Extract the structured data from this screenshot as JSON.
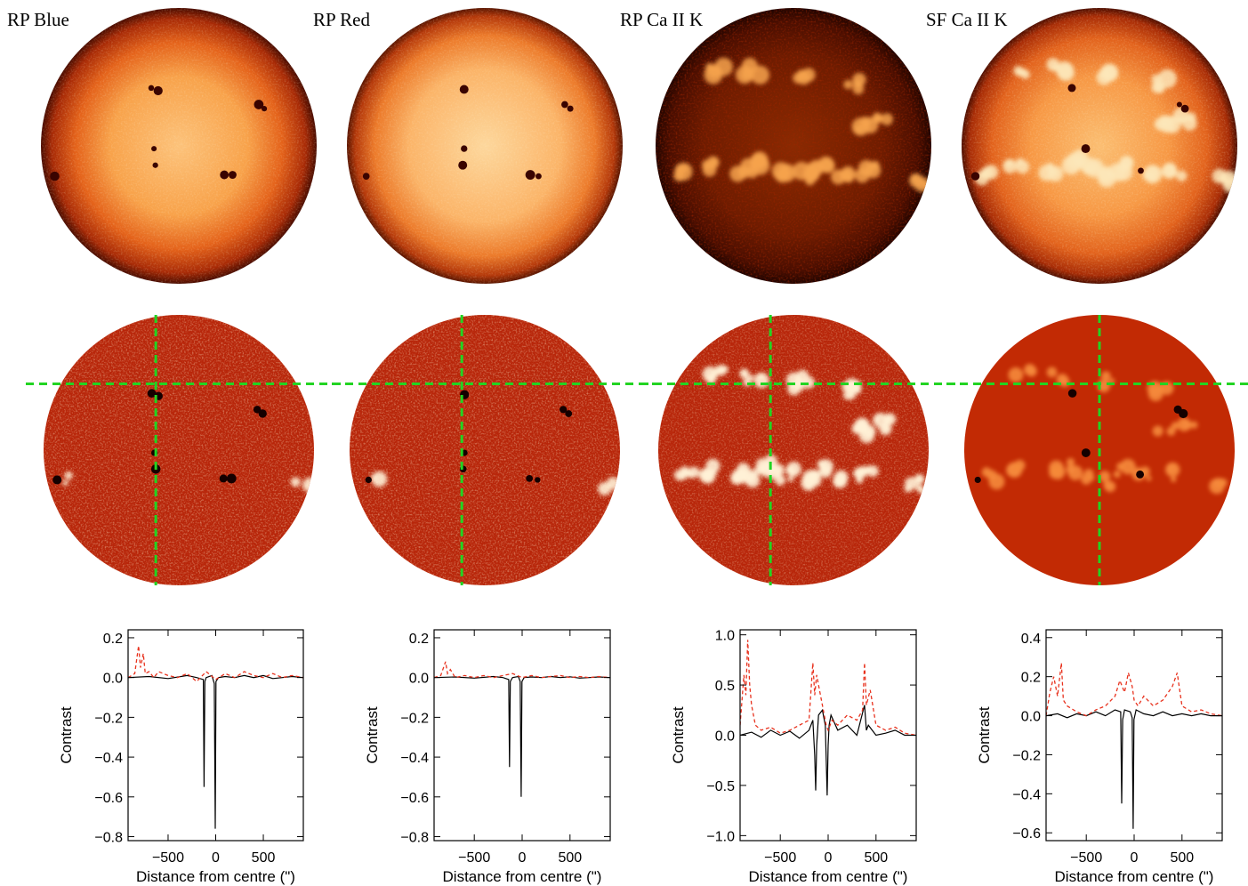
{
  "panels": [
    {
      "id": "rp-blue",
      "label": "RP Blue",
      "disk_palette": "orange-blue",
      "sunspot_count": 9,
      "contrast_palette": "red-map"
    },
    {
      "id": "rp-red",
      "label": "RP Red",
      "disk_palette": "orange-red",
      "sunspot_count": 8,
      "contrast_palette": "red-map"
    },
    {
      "id": "rp-caiik",
      "label": "RP Ca II K",
      "disk_palette": "dark-ca",
      "sunspot_count": 0,
      "contrast_palette": "red-map"
    },
    {
      "id": "sf-caiik",
      "label": "SF Ca II K",
      "disk_palette": "bright-ca",
      "sunspot_count": 6,
      "contrast_palette": "red-map"
    }
  ],
  "guide_line_color": "#22d422",
  "profile_colors": {
    "horizontal_cut": "#e8321e",
    "vertical_cut": "#000000"
  },
  "chart_data": [
    {
      "type": "line",
      "panel": "RP Blue",
      "xlabel": "Distance from centre (\")",
      "ylabel": "Contrast",
      "xlim": [
        -920,
        920
      ],
      "ylim": [
        -0.82,
        0.24
      ],
      "x_ticks": [
        {
          "v": -500,
          "t": "−500"
        },
        {
          "v": 0,
          "t": "0"
        },
        {
          "v": 500,
          "t": "500"
        }
      ],
      "y_ticks": [
        {
          "v": 0.2,
          "t": "0.2"
        },
        {
          "v": 0.0,
          "t": "0.0"
        },
        {
          "v": -0.2,
          "t": "−0.2"
        },
        {
          "v": -0.4,
          "t": "−0.4"
        },
        {
          "v": -0.6,
          "t": "−0.6"
        },
        {
          "v": -0.8,
          "t": "−0.8"
        }
      ],
      "series": [
        {
          "style": "solid",
          "color": "#000000",
          "x": [
            -920,
            -700,
            -500,
            -300,
            -200,
            -130,
            -122,
            -114,
            -100,
            -40,
            -15,
            -5,
            3,
            30,
            100,
            200,
            300,
            400,
            500,
            600,
            700,
            800,
            920
          ],
          "y": [
            0.0,
            0.005,
            -0.005,
            0.01,
            0.0,
            -0.01,
            -0.55,
            -0.02,
            0.0,
            0.01,
            -0.03,
            -0.76,
            -0.02,
            0.0,
            0.005,
            0.0,
            0.01,
            0.0,
            0.01,
            -0.005,
            0.0,
            0.005,
            0.0
          ]
        },
        {
          "style": "dashed",
          "color": "#e8321e",
          "x": [
            -920,
            -850,
            -810,
            -790,
            -760,
            -740,
            -700,
            -650,
            -600,
            -500,
            -400,
            -300,
            -200,
            -100,
            0,
            100,
            200,
            300,
            400,
            500,
            600,
            700,
            800,
            920
          ],
          "y": [
            0.0,
            0.02,
            0.16,
            0.05,
            0.12,
            0.02,
            0.03,
            0.0,
            0.03,
            0.01,
            0.0,
            0.02,
            -0.02,
            0.03,
            -0.01,
            0.02,
            0.0,
            0.03,
            0.01,
            0.0,
            0.02,
            0.0,
            0.01,
            0.0
          ]
        }
      ]
    },
    {
      "type": "line",
      "panel": "RP Red",
      "xlabel": "Distance from centre (\")",
      "ylabel": "Contrast",
      "xlim": [
        -920,
        920
      ],
      "ylim": [
        -0.82,
        0.24
      ],
      "x_ticks": [
        {
          "v": -500,
          "t": "−500"
        },
        {
          "v": 0,
          "t": "0"
        },
        {
          "v": 500,
          "t": "500"
        }
      ],
      "y_ticks": [
        {
          "v": 0.2,
          "t": "0.2"
        },
        {
          "v": 0.0,
          "t": "0.0"
        },
        {
          "v": -0.2,
          "t": "−0.2"
        },
        {
          "v": -0.4,
          "t": "−0.4"
        },
        {
          "v": -0.6,
          "t": "−0.6"
        },
        {
          "v": -0.8,
          "t": "−0.8"
        }
      ],
      "series": [
        {
          "style": "solid",
          "color": "#000000",
          "x": [
            -920,
            -700,
            -500,
            -300,
            -200,
            -140,
            -132,
            -124,
            -100,
            -40,
            -20,
            -10,
            -2,
            20,
            100,
            200,
            300,
            400,
            500,
            600,
            700,
            800,
            920
          ],
          "y": [
            0.0,
            0.003,
            -0.003,
            0.005,
            0.0,
            -0.01,
            -0.45,
            -0.02,
            0.0,
            0.005,
            -0.02,
            -0.6,
            -0.02,
            0.0,
            0.003,
            0.0,
            0.005,
            0.0,
            0.004,
            -0.003,
            0.0,
            0.003,
            0.0
          ]
        },
        {
          "style": "dashed",
          "color": "#e8321e",
          "x": [
            -920,
            -850,
            -800,
            -780,
            -750,
            -700,
            -600,
            -500,
            -400,
            -300,
            -200,
            -100,
            0,
            100,
            200,
            300,
            400,
            500,
            600,
            700,
            800,
            920
          ],
          "y": [
            0.0,
            0.01,
            0.08,
            0.02,
            0.04,
            0.0,
            0.01,
            0.0,
            0.01,
            0.0,
            0.01,
            0.02,
            0.0,
            0.01,
            0.0,
            0.005,
            0.01,
            0.0,
            0.005,
            0.0,
            0.005,
            0.0
          ]
        }
      ]
    },
    {
      "type": "line",
      "panel": "RP Ca II K",
      "xlabel": "Distance from centre (\")",
      "ylabel": "Contrast",
      "xlim": [
        -920,
        920
      ],
      "ylim": [
        -1.05,
        1.05
      ],
      "x_ticks": [
        {
          "v": -500,
          "t": "−500"
        },
        {
          "v": 0,
          "t": "0"
        },
        {
          "v": 500,
          "t": "500"
        }
      ],
      "y_ticks": [
        {
          "v": 1.0,
          "t": "1.0"
        },
        {
          "v": 0.5,
          "t": "0.5"
        },
        {
          "v": 0.0,
          "t": "0.0"
        },
        {
          "v": -0.5,
          "t": "−0.5"
        },
        {
          "v": -1.0,
          "t": "−1.0"
        }
      ],
      "series": [
        {
          "style": "solid",
          "color": "#000000",
          "x": [
            -920,
            -800,
            -700,
            -600,
            -500,
            -400,
            -300,
            -200,
            -160,
            -140,
            -130,
            -120,
            -100,
            -60,
            -30,
            -10,
            0,
            10,
            30,
            100,
            200,
            300,
            380,
            400,
            420,
            500,
            600,
            700,
            800,
            920
          ],
          "y": [
            0.0,
            0.03,
            -0.02,
            0.05,
            0.0,
            0.04,
            -0.03,
            0.05,
            0.15,
            -0.2,
            -0.55,
            -0.1,
            0.2,
            0.25,
            0.1,
            -0.6,
            -0.1,
            0.1,
            0.2,
            0.05,
            0.1,
            0.0,
            0.3,
            0.05,
            0.1,
            0.0,
            0.02,
            0.05,
            0.0,
            0.0
          ]
        },
        {
          "style": "dashed",
          "color": "#e8321e",
          "x": [
            -920,
            -880,
            -860,
            -840,
            -820,
            -800,
            -760,
            -700,
            -600,
            -500,
            -400,
            -300,
            -200,
            -160,
            -140,
            -120,
            -100,
            -60,
            -20,
            0,
            40,
            100,
            200,
            300,
            360,
            380,
            400,
            440,
            500,
            600,
            700,
            800,
            920
          ],
          "y": [
            0.1,
            0.6,
            0.4,
            0.95,
            0.5,
            0.3,
            0.1,
            0.05,
            0.08,
            0.02,
            0.05,
            0.1,
            0.15,
            0.72,
            0.4,
            0.6,
            0.5,
            0.3,
            0.1,
            0.05,
            0.15,
            0.1,
            0.2,
            0.15,
            0.25,
            0.72,
            0.3,
            0.45,
            0.1,
            0.05,
            0.08,
            0.02,
            0.0
          ]
        }
      ]
    },
    {
      "type": "line",
      "panel": "SF Ca II K",
      "xlabel": "Distance from centre (\")",
      "ylabel": "Contrast",
      "xlim": [
        -920,
        920
      ],
      "ylim": [
        -0.64,
        0.44
      ],
      "x_ticks": [
        {
          "v": -500,
          "t": "−500"
        },
        {
          "v": 0,
          "t": "0"
        },
        {
          "v": 500,
          "t": "500"
        }
      ],
      "y_ticks": [
        {
          "v": 0.4,
          "t": "0.4"
        },
        {
          "v": 0.2,
          "t": "0.2"
        },
        {
          "v": 0.0,
          "t": "0.0"
        },
        {
          "v": -0.2,
          "t": "−0.2"
        },
        {
          "v": -0.4,
          "t": "−0.4"
        },
        {
          "v": -0.6,
          "t": "−0.6"
        }
      ],
      "series": [
        {
          "style": "solid",
          "color": "#000000",
          "x": [
            -920,
            -800,
            -700,
            -600,
            -500,
            -400,
            -300,
            -200,
            -140,
            -130,
            -120,
            -100,
            -40,
            -20,
            -10,
            -2,
            20,
            100,
            200,
            300,
            400,
            500,
            600,
            700,
            800,
            920
          ],
          "y": [
            0.0,
            0.01,
            -0.01,
            0.01,
            0.0,
            0.02,
            0.0,
            0.03,
            0.02,
            -0.45,
            -0.02,
            0.03,
            0.02,
            -0.01,
            -0.58,
            -0.02,
            0.03,
            0.01,
            0.0,
            0.02,
            0.0,
            0.01,
            0.0,
            0.01,
            0.0,
            0.0
          ]
        },
        {
          "style": "dashed",
          "color": "#e8321e",
          "x": [
            -920,
            -880,
            -840,
            -800,
            -760,
            -740,
            -700,
            -600,
            -500,
            -400,
            -300,
            -200,
            -150,
            -100,
            -60,
            -20,
            0,
            40,
            100,
            200,
            300,
            400,
            450,
            500,
            600,
            700,
            800,
            920
          ],
          "y": [
            0.0,
            0.12,
            0.2,
            0.1,
            0.27,
            0.08,
            0.05,
            0.02,
            0.0,
            0.03,
            0.05,
            0.1,
            0.18,
            0.12,
            0.22,
            0.15,
            0.08,
            0.05,
            0.1,
            0.05,
            0.08,
            0.15,
            0.22,
            0.05,
            0.02,
            0.03,
            0.01,
            0.0
          ]
        }
      ]
    }
  ]
}
